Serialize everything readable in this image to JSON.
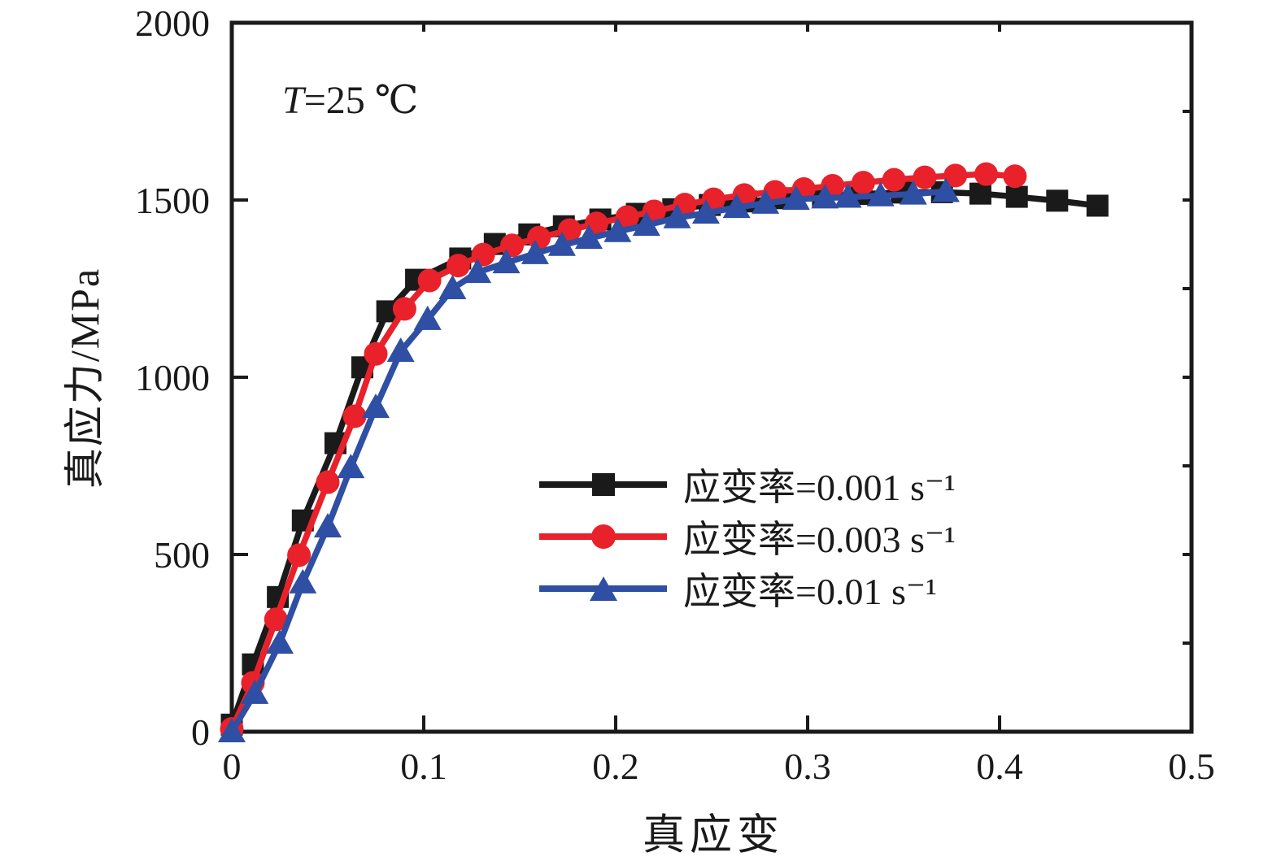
{
  "page": {
    "background": "#ffffff",
    "text_color": "#1a1a1a"
  },
  "chart_data": {
    "type": "line",
    "title": "",
    "annotation": {
      "symbol": "T",
      "rest": "=25 ℃",
      "full": "T=25 ℃"
    },
    "xlabel": "真应变",
    "ylabel": "真应力/MPa",
    "xlim": [
      0,
      0.5
    ],
    "ylim": [
      0,
      2000
    ],
    "grid": false,
    "legend_position": "inside-center-right",
    "x_ticks": {
      "values": [
        0,
        0.1,
        0.2,
        0.3,
        0.4,
        0.5
      ],
      "labels": [
        "0",
        "0.1",
        "0.2",
        "0.3",
        "0.4",
        "0.5"
      ]
    },
    "y_ticks": {
      "values": [
        0,
        500,
        1000,
        1500,
        2000
      ],
      "labels": [
        "0",
        "500",
        "1000",
        "1500",
        "2000"
      ]
    },
    "minor_ticks": {
      "top_x_values": [
        0.1,
        0.2,
        0.3,
        0.4
      ],
      "right_y_step": 250
    },
    "series": [
      {
        "name": "应变率=0.001 s⁻¹",
        "color": "#1a1a1a",
        "marker": "square",
        "x": [
          0,
          0.011,
          0.024,
          0.037,
          0.054,
          0.068,
          0.081,
          0.096,
          0.119,
          0.137,
          0.155,
          0.173,
          0.192,
          0.211,
          0.23,
          0.249,
          0.268,
          0.288,
          0.308,
          0.328,
          0.349,
          0.37,
          0.39,
          0.409,
          0.43,
          0.451
        ],
        "y": [
          20,
          190,
          380,
          596,
          814,
          1028,
          1186,
          1275,
          1335,
          1376,
          1403,
          1426,
          1445,
          1461,
          1474,
          1486,
          1496,
          1505,
          1512,
          1517,
          1521,
          1522,
          1518,
          1509,
          1498,
          1484
        ]
      },
      {
        "name": "应变率=0.003 s⁻¹",
        "color": "#e8212b",
        "marker": "circle",
        "x": [
          0,
          0.011,
          0.023,
          0.035,
          0.05,
          0.064,
          0.075,
          0.09,
          0.103,
          0.118,
          0.131,
          0.146,
          0.16,
          0.176,
          0.19,
          0.206,
          0.22,
          0.236,
          0.251,
          0.267,
          0.283,
          0.298,
          0.313,
          0.329,
          0.345,
          0.361,
          0.377,
          0.393,
          0.408
        ],
        "y": [
          8,
          138,
          317,
          498,
          704,
          890,
          1066,
          1193,
          1273,
          1315,
          1346,
          1372,
          1394,
          1415,
          1434,
          1452,
          1468,
          1487,
          1502,
          1514,
          1523,
          1531,
          1540,
          1549,
          1557,
          1564,
          1569,
          1573,
          1567
        ]
      },
      {
        "name": "应变率=0.01 s⁻¹",
        "color": "#2e4fa3",
        "marker": "triangle",
        "x": [
          0,
          0.012,
          0.025,
          0.037,
          0.05,
          0.062,
          0.075,
          0.088,
          0.102,
          0.115,
          0.128,
          0.143,
          0.158,
          0.172,
          0.186,
          0.201,
          0.216,
          0.232,
          0.247,
          0.263,
          0.278,
          0.294,
          0.309,
          0.321,
          0.338,
          0.355,
          0.372
        ],
        "y": [
          0,
          108,
          250,
          420,
          578,
          745,
          915,
          1073,
          1163,
          1250,
          1296,
          1323,
          1349,
          1372,
          1392,
          1411,
          1429,
          1450,
          1463,
          1479,
          1491,
          1502,
          1506,
          1508,
          1512,
          1517,
          1524
        ]
      }
    ]
  }
}
